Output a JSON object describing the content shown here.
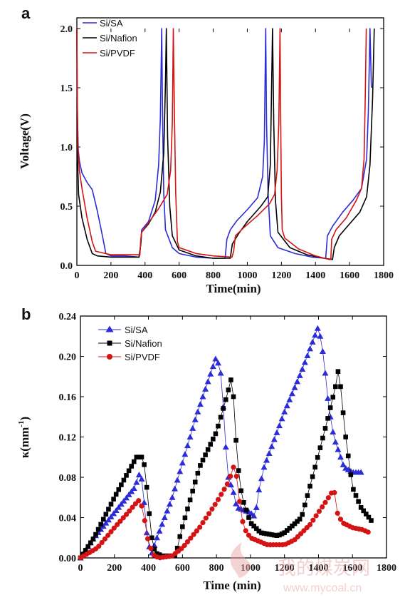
{
  "panel_a_label": "a",
  "panel_b_label": "b",
  "watermark": "我的煤炭网",
  "watermark_url": "www.mycoal.cn",
  "colors": {
    "SA": "#2b2bd8",
    "Nafion": "#000000",
    "PVDF": "#d41414",
    "watermark": "#e9a8a8"
  },
  "chart_data": [
    {
      "type": "line",
      "panel": "a",
      "xlabel": "Time(min)",
      "ylabel": "Voltage(V)",
      "xlim": [
        0,
        1800
      ],
      "ylim": [
        0,
        2.0
      ],
      "xticks": [
        0,
        200,
        400,
        600,
        800,
        1000,
        1200,
        1400,
        1600,
        1800
      ],
      "yticks": [
        0.0,
        0.5,
        1.0,
        1.5,
        2.0
      ],
      "ytick_labels": [
        "0.0",
        "0.5",
        "1.0",
        "1.5",
        "2.0"
      ],
      "legend": "top-left",
      "series": [
        {
          "name": "Si/SA",
          "points": [
            [
              0,
              2.0
            ],
            [
              3,
              1.3
            ],
            [
              8,
              0.98
            ],
            [
              15,
              0.88
            ],
            [
              30,
              0.78
            ],
            [
              60,
              0.7
            ],
            [
              90,
              0.64
            ],
            [
              120,
              0.46
            ],
            [
              150,
              0.25
            ],
            [
              170,
              0.1
            ],
            [
              200,
              0.08
            ],
            [
              280,
              0.08
            ],
            [
              365,
              0.07
            ],
            [
              375,
              0.18
            ],
            [
              380,
              0.3
            ],
            [
              420,
              0.37
            ],
            [
              460,
              0.55
            ],
            [
              480,
              0.85
            ],
            [
              490,
              1.25
            ],
            [
              498,
              2.0
            ],
            [
              503,
              1.25
            ],
            [
              510,
              0.6
            ],
            [
              520,
              0.3
            ],
            [
              560,
              0.15
            ],
            [
              600,
              0.1
            ],
            [
              700,
              0.07
            ],
            [
              800,
              0.06
            ],
            [
              870,
              0.06
            ],
            [
              880,
              0.22
            ],
            [
              900,
              0.3
            ],
            [
              940,
              0.38
            ],
            [
              1000,
              0.47
            ],
            [
              1060,
              0.57
            ],
            [
              1090,
              0.75
            ],
            [
              1100,
              1.05
            ],
            [
              1108,
              2.0
            ],
            [
              1113,
              1.2
            ],
            [
              1122,
              0.6
            ],
            [
              1135,
              0.25
            ],
            [
              1180,
              0.15
            ],
            [
              1280,
              0.1
            ],
            [
              1380,
              0.07
            ],
            [
              1460,
              0.06
            ],
            [
              1470,
              0.25
            ],
            [
              1500,
              0.33
            ],
            [
              1560,
              0.45
            ],
            [
              1620,
              0.55
            ],
            [
              1670,
              0.65
            ],
            [
              1700,
              0.9
            ],
            [
              1710,
              1.3
            ],
            [
              1720,
              2.0
            ],
            [
              1728,
              1.5
            ]
          ]
        },
        {
          "name": "Si/Nafion",
          "points": [
            [
              0,
              2.0
            ],
            [
              2,
              1.0
            ],
            [
              10,
              0.6
            ],
            [
              30,
              0.4
            ],
            [
              60,
              0.22
            ],
            [
              90,
              0.1
            ],
            [
              120,
              0.08
            ],
            [
              200,
              0.07
            ],
            [
              300,
              0.07
            ],
            [
              365,
              0.07
            ],
            [
              375,
              0.18
            ],
            [
              380,
              0.28
            ],
            [
              420,
              0.35
            ],
            [
              460,
              0.45
            ],
            [
              490,
              0.62
            ],
            [
              510,
              0.95
            ],
            [
              520,
              1.55
            ],
            [
              525,
              2.0
            ],
            [
              532,
              1.1
            ],
            [
              545,
              0.5
            ],
            [
              560,
              0.25
            ],
            [
              600,
              0.13
            ],
            [
              700,
              0.08
            ],
            [
              800,
              0.06
            ],
            [
              900,
              0.06
            ],
            [
              912,
              0.18
            ],
            [
              950,
              0.27
            ],
            [
              1000,
              0.37
            ],
            [
              1080,
              0.5
            ],
            [
              1120,
              0.58
            ],
            [
              1135,
              0.85
            ],
            [
              1148,
              2.0
            ],
            [
              1155,
              1.2
            ],
            [
              1165,
              0.55
            ],
            [
              1180,
              0.28
            ],
            [
              1250,
              0.15
            ],
            [
              1350,
              0.09
            ],
            [
              1450,
              0.06
            ],
            [
              1500,
              0.05
            ],
            [
              1510,
              0.15
            ],
            [
              1540,
              0.25
            ],
            [
              1600,
              0.35
            ],
            [
              1660,
              0.45
            ],
            [
              1700,
              0.58
            ],
            [
              1720,
              0.85
            ],
            [
              1735,
              1.4
            ],
            [
              1745,
              2.0
            ]
          ]
        },
        {
          "name": "Si/PVDF",
          "points": [
            [
              0,
              2.0
            ],
            [
              2,
              1.5
            ],
            [
              6,
              1.0
            ],
            [
              15,
              0.8
            ],
            [
              30,
              0.65
            ],
            [
              60,
              0.4
            ],
            [
              90,
              0.2
            ],
            [
              110,
              0.12
            ],
            [
              200,
              0.09
            ],
            [
              300,
              0.09
            ],
            [
              370,
              0.09
            ],
            [
              375,
              0.22
            ],
            [
              380,
              0.28
            ],
            [
              420,
              0.36
            ],
            [
              480,
              0.48
            ],
            [
              530,
              0.6
            ],
            [
              550,
              0.8
            ],
            [
              560,
              1.2
            ],
            [
              566,
              2.0
            ],
            [
              572,
              1.3
            ],
            [
              580,
              0.6
            ],
            [
              590,
              0.2
            ],
            [
              600,
              0.15
            ],
            [
              700,
              0.1
            ],
            [
              800,
              0.08
            ],
            [
              910,
              0.07
            ],
            [
              920,
              0.12
            ],
            [
              930,
              0.25
            ],
            [
              980,
              0.32
            ],
            [
              1060,
              0.42
            ],
            [
              1130,
              0.52
            ],
            [
              1160,
              0.6
            ],
            [
              1175,
              0.8
            ],
            [
              1185,
              1.2
            ],
            [
              1192,
              2.0
            ],
            [
              1196,
              1.2
            ],
            [
              1200,
              0.6
            ],
            [
              1205,
              0.3
            ],
            [
              1220,
              0.23
            ],
            [
              1300,
              0.14
            ],
            [
              1400,
              0.08
            ],
            [
              1480,
              0.05
            ],
            [
              1490,
              0.05
            ],
            [
              1495,
              0.22
            ],
            [
              1520,
              0.3
            ],
            [
              1580,
              0.4
            ],
            [
              1640,
              0.55
            ],
            [
              1670,
              0.65
            ],
            [
              1685,
              0.9
            ],
            [
              1692,
              1.4
            ],
            [
              1698,
              2.0
            ]
          ]
        }
      ]
    },
    {
      "type": "scatter",
      "panel": "b",
      "xlabel": "Time (min)",
      "ylabel": "κ(mm",
      "ylabel_sup": "-1",
      "ylabel_close": ")",
      "xlim": [
        0,
        1800
      ],
      "ylim": [
        0,
        0.24
      ],
      "xticks": [
        0,
        200,
        400,
        600,
        800,
        1000,
        1200,
        1400,
        1600,
        1800
      ],
      "yticks": [
        0.0,
        0.04,
        0.08,
        0.12,
        0.16,
        0.2,
        0.24
      ],
      "ytick_labels": [
        "0.00",
        "0.04",
        "0.08",
        "0.12",
        "0.16",
        "0.20",
        "0.24"
      ],
      "legend": "top-left",
      "series": [
        {
          "name": "Si/SA",
          "marker": "triangle",
          "step": 15,
          "segments": [
            [
              0,
              0
            ],
            [
              80,
              0.02
            ],
            [
              200,
              0.045
            ],
            [
              320,
              0.07
            ],
            [
              350,
              0.085
            ],
            [
              365,
              0.075
            ],
            [
              395,
              0.015
            ],
            [
              420,
              0.005
            ],
            [
              450,
              0.02
            ],
            [
              540,
              0.06
            ],
            [
              680,
              0.14
            ],
            [
              800,
              0.2
            ],
            [
              830,
              0.18
            ],
            [
              850,
              0.12
            ],
            [
              870,
              0.08
            ],
            [
              900,
              0.065
            ],
            [
              920,
              0.05
            ],
            [
              1000,
              0.045
            ],
            [
              1030,
              0.04
            ],
            [
              1040,
              0.06
            ],
            [
              1080,
              0.09
            ],
            [
              1200,
              0.145
            ],
            [
              1300,
              0.185
            ],
            [
              1400,
              0.23
            ],
            [
              1430,
              0.2
            ],
            [
              1460,
              0.15
            ],
            [
              1490,
              0.12
            ],
            [
              1550,
              0.09
            ],
            [
              1600,
              0.085
            ],
            [
              1660,
              0.085
            ]
          ]
        },
        {
          "name": "Si/Nafion",
          "marker": "square",
          "step": 15,
          "segments": [
            [
              0,
              0
            ],
            [
              80,
              0.02
            ],
            [
              200,
              0.06
            ],
            [
              280,
              0.085
            ],
            [
              330,
              0.1
            ],
            [
              360,
              0.1
            ],
            [
              380,
              0.09
            ],
            [
              395,
              0.06
            ],
            [
              420,
              0.02
            ],
            [
              440,
              0.005
            ],
            [
              480,
              0.002
            ],
            [
              560,
              0.002
            ],
            [
              590,
              0.025
            ],
            [
              700,
              0.09
            ],
            [
              800,
              0.125
            ],
            [
              860,
              0.16
            ],
            [
              890,
              0.18
            ],
            [
              905,
              0.15
            ],
            [
              920,
              0.1
            ],
            [
              950,
              0.06
            ],
            [
              1000,
              0.035
            ],
            [
              1060,
              0.025
            ],
            [
              1160,
              0.022
            ],
            [
              1200,
              0.025
            ],
            [
              1300,
              0.04
            ],
            [
              1380,
              0.09
            ],
            [
              1450,
              0.135
            ],
            [
              1500,
              0.17
            ],
            [
              1520,
              0.19
            ],
            [
              1535,
              0.16
            ],
            [
              1560,
              0.12
            ],
            [
              1600,
              0.07
            ],
            [
              1650,
              0.05
            ],
            [
              1720,
              0.035
            ]
          ]
        },
        {
          "name": "Si/PVDF",
          "marker": "circle",
          "step": 18,
          "segments": [
            [
              0,
              0
            ],
            [
              100,
              0.01
            ],
            [
              200,
              0.03
            ],
            [
              280,
              0.045
            ],
            [
              330,
              0.055
            ],
            [
              350,
              0.058
            ],
            [
              370,
              0.045
            ],
            [
              400,
              0.015
            ],
            [
              430,
              0.003
            ],
            [
              460,
              0.0
            ],
            [
              540,
              0.002
            ],
            [
              600,
              0.01
            ],
            [
              700,
              0.03
            ],
            [
              800,
              0.055
            ],
            [
              870,
              0.075
            ],
            [
              900,
              0.09
            ],
            [
              920,
              0.08
            ],
            [
              940,
              0.05
            ],
            [
              960,
              0.03
            ],
            [
              1000,
              0.02
            ],
            [
              1100,
              0.013
            ],
            [
              1200,
              0.013
            ],
            [
              1260,
              0.018
            ],
            [
              1350,
              0.033
            ],
            [
              1440,
              0.055
            ],
            [
              1490,
              0.068
            ],
            [
              1500,
              0.06
            ],
            [
              1510,
              0.045
            ],
            [
              1540,
              0.035
            ],
            [
              1600,
              0.03
            ],
            [
              1660,
              0.028
            ],
            [
              1700,
              0.025
            ]
          ]
        }
      ]
    }
  ]
}
